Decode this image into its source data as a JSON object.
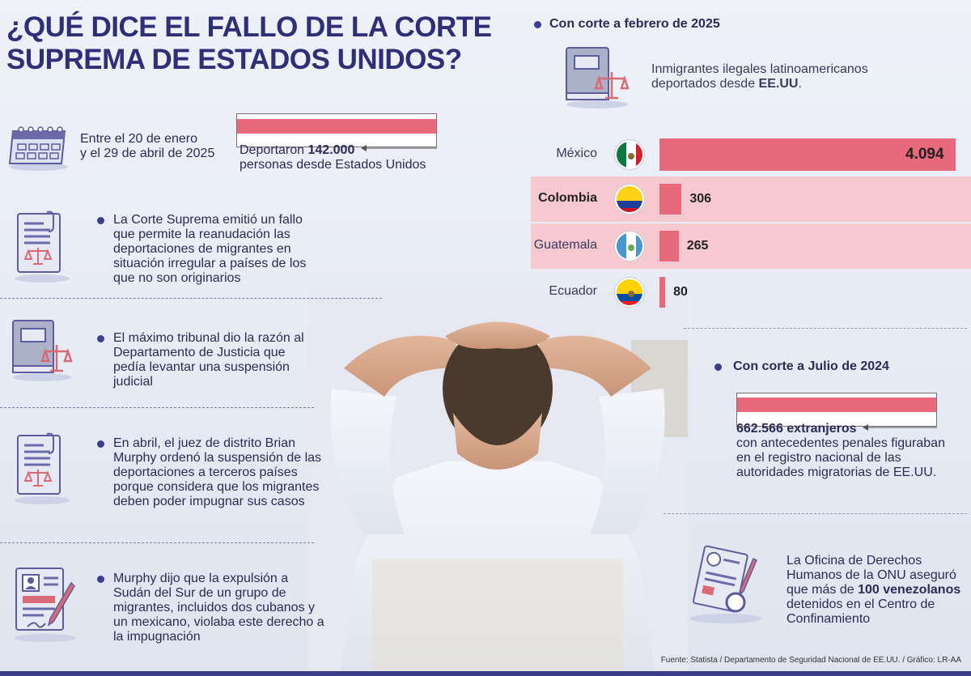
{
  "title": "¿QUÉ DICE EL FALLO DE LA CORTE SUPREMA DE ESTADOS UNIDOS?",
  "deportations": {
    "period_line1": "Entre el 20 de enero",
    "period_line2": "y el 29 de abril de 2025",
    "caption_prefix": "Deportaron ",
    "caption_number": "142.000",
    "caption_line2": "personas desde Estados Unidos"
  },
  "points": [
    {
      "text": "La Corte Suprema emitió un fallo que permite la reanudación las deportaciones de migrantes en situación irregular a países de los que no son originarios"
    },
    {
      "text": "El máximo tribunal dio la razón al Departamento de Justicia que pedía levantar una suspensión judicial"
    },
    {
      "text": "En abril, el juez de distrito Brian Murphy ordenó la suspensión de las deportaciones a terceros países porque considera que los migrantes deben poder impugnar sus casos"
    },
    {
      "text": "Murphy dijo que la expulsión a Sudán del Sur de un grupo de migrantes, incluidos dos cubanos y un mexicano, violaba este derecho a la impugnación"
    }
  ],
  "feb2025": {
    "heading": "Con corte a febrero de 2025",
    "desc_line1": "Inmigrantes ilegales latinoamericanos",
    "desc_line2_prefix": "deportados desde ",
    "desc_line2_bold": "EE.UU",
    "desc_line2_suffix": "."
  },
  "chart_data": {
    "type": "bar",
    "orientation": "horizontal",
    "title": "Con corte a febrero de 2025",
    "categories": [
      "México",
      "Colombia",
      "Guatemala",
      "Ecuador"
    ],
    "values": [
      4094,
      306,
      265,
      80
    ],
    "value_labels": [
      "4.094",
      "306",
      "265",
      "80"
    ],
    "highlight": "Colombia",
    "bar_color": "#e8687c",
    "highlight_bg": "#f5c9cf"
  },
  "jul2024": {
    "heading": "Con corte a Julio de 2024",
    "number": "662.566 extranjeros",
    "line1": "con antecedentes penales figuraban",
    "line2": "en el registro nacional de las",
    "line3": "autoridades migratorias de EE.UU."
  },
  "onu": {
    "line1": "La Oficina de Derechos",
    "line2": "Humanos de la ONU aseguró",
    "line3_prefix": "que más de ",
    "line3_bold": "100 venezolanos",
    "line4": "detenidos en el Centro de",
    "line5": "Confinamiento"
  },
  "source": "Fuente: Statista / Departamento de Seguridad Nacional de EE.UU. / Gráfico: LR-AA",
  "colors": {
    "accent": "#e8687c",
    "navy": "#2e2f78",
    "icon_purple": "#6b6aa8"
  }
}
